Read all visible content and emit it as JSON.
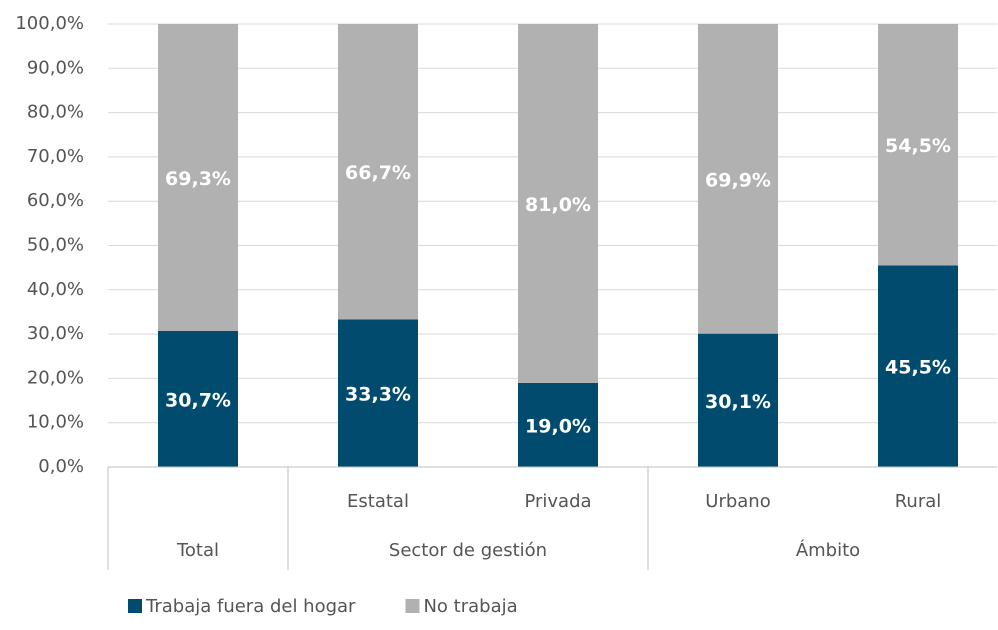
{
  "chart_data": {
    "type": "stacked_bar",
    "categories": [
      null,
      "Estatal",
      "Privada",
      "Urbano",
      "Rural"
    ],
    "category_groups": [
      "Total",
      "Sector de gestión",
      "Sector de gestión",
      "Ámbito",
      "Ámbito"
    ],
    "series": [
      {
        "name": "Trabaja fuera del hogar",
        "color": "#004b6e",
        "values": [
          30.7,
          33.3,
          19.0,
          30.1,
          45.5
        ],
        "value_labels": [
          "30,7%",
          "33,3%",
          "19,0%",
          "30,1%",
          "45,5%"
        ]
      },
      {
        "name": "No trabaja",
        "color": "#b1b1b1",
        "values": [
          69.3,
          66.7,
          81.0,
          69.9,
          54.5
        ],
        "value_labels": [
          "69,3%",
          "66,7%",
          "81,0%",
          "69,9%",
          "54,5%"
        ]
      }
    ],
    "ylim": [
      0,
      100
    ],
    "yticks": [
      {
        "value": 0,
        "label": "0,0%"
      },
      {
        "value": 10,
        "label": "10,0%"
      },
      {
        "value": 20,
        "label": "20,0%"
      },
      {
        "value": 30,
        "label": "30,0%"
      },
      {
        "value": 40,
        "label": "40,0%"
      },
      {
        "value": 50,
        "label": "50,0%"
      },
      {
        "value": 60,
        "label": "60,0%"
      },
      {
        "value": 70,
        "label": "70,0%"
      },
      {
        "value": 80,
        "label": "80,0%"
      },
      {
        "value": 90,
        "label": "90,0%"
      },
      {
        "value": 100,
        "label": "100,0%"
      }
    ],
    "grid": true,
    "legend": "bottom"
  }
}
